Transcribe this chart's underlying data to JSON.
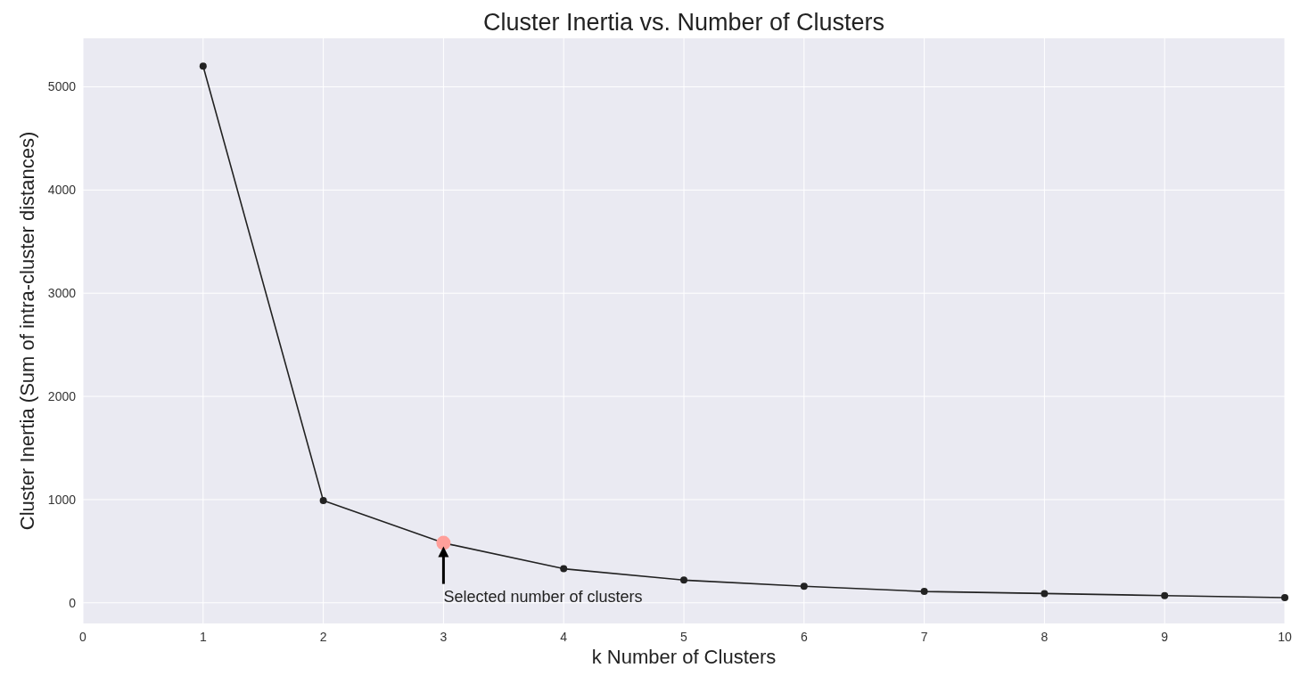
{
  "chart_data": {
    "type": "line",
    "title": "Cluster Inertia vs. Number of Clusters",
    "xlabel": "k Number of Clusters",
    "ylabel": "Cluster Inertia (Sum of intra-cluster distances)",
    "x": [
      1,
      2,
      3,
      4,
      5,
      6,
      7,
      8,
      9,
      10
    ],
    "series": [
      {
        "color": "#222222",
        "values": [
          5200,
          990,
          580,
          330,
          220,
          160,
          110,
          90,
          70,
          50
        ]
      },
      {
        "type": "scatter",
        "x": [
          3
        ],
        "color": "#ff9f9a",
        "values": [
          580
        ]
      }
    ],
    "xlim": [
      0,
      10
    ],
    "xticks": [
      0,
      1,
      2,
      3,
      4,
      5,
      6,
      7,
      8,
      9,
      10
    ],
    "ylim": [
      -200,
      5470
    ],
    "yticks": [
      0,
      1000,
      2000,
      3000,
      4000,
      5000
    ],
    "grid": true,
    "marker": "circle",
    "line_style": "solid",
    "annotations": [
      {
        "text": "Selected number of clusters",
        "x": 3,
        "y": 580
      }
    ]
  }
}
